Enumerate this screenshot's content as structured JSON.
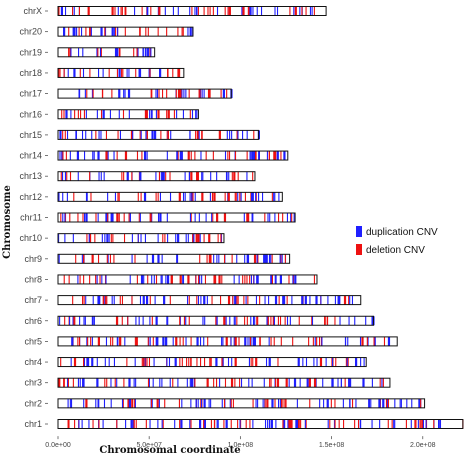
{
  "chart_data": {
    "type": "chromosome-ideogram",
    "xlabel": "Chromosomal coordinate",
    "ylabel": "Chromosome",
    "x_ticks": [
      {
        "value": 0,
        "label": "0.0e+00"
      },
      {
        "value": 50000000,
        "label": "5.0e+07"
      },
      {
        "value": 100000000,
        "label": "1.0e+08"
      },
      {
        "value": 150000000,
        "label": "1.5e+08"
      },
      {
        "value": 200000000,
        "label": "2.0e+08"
      }
    ],
    "xlim": [
      0,
      227000000
    ],
    "legend": {
      "placement": "right",
      "entries": [
        {
          "name": "duplication CNV",
          "color": "#1f1fff"
        },
        {
          "name": "deletion CNV",
          "color": "#ee1111"
        }
      ]
    },
    "chromosomes": [
      {
        "name": "chrX",
        "length": 147000000
      },
      {
        "name": "chr20",
        "length": 74000000
      },
      {
        "name": "chr19",
        "length": 53000000
      },
      {
        "name": "chr18",
        "length": 69000000
      },
      {
        "name": "chr17",
        "length": 95000000
      },
      {
        "name": "chr16",
        "length": 77000000
      },
      {
        "name": "chr15",
        "length": 110000000
      },
      {
        "name": "chr14",
        "length": 126000000
      },
      {
        "name": "chr13",
        "length": 108000000
      },
      {
        "name": "chr12",
        "length": 123000000
      },
      {
        "name": "chr11",
        "length": 130000000
      },
      {
        "name": "chr10",
        "length": 91000000
      },
      {
        "name": "chr9",
        "length": 127000000
      },
      {
        "name": "chr8",
        "length": 142000000
      },
      {
        "name": "chr7",
        "length": 166000000
      },
      {
        "name": "chr6",
        "length": 173000000
      },
      {
        "name": "chr5",
        "length": 186000000
      },
      {
        "name": "chr4",
        "length": 169000000
      },
      {
        "name": "chr3",
        "length": 182000000
      },
      {
        "name": "chr2",
        "length": 201000000
      },
      {
        "name": "chr1",
        "length": 222000000
      }
    ],
    "marks_note_counts": {
      "approx_marks_per_10Mb": 2.2
    },
    "seed": 7
  },
  "colors": {
    "duplication": "#1f1fff",
    "deletion": "#ee1111",
    "outline": "#111111"
  }
}
